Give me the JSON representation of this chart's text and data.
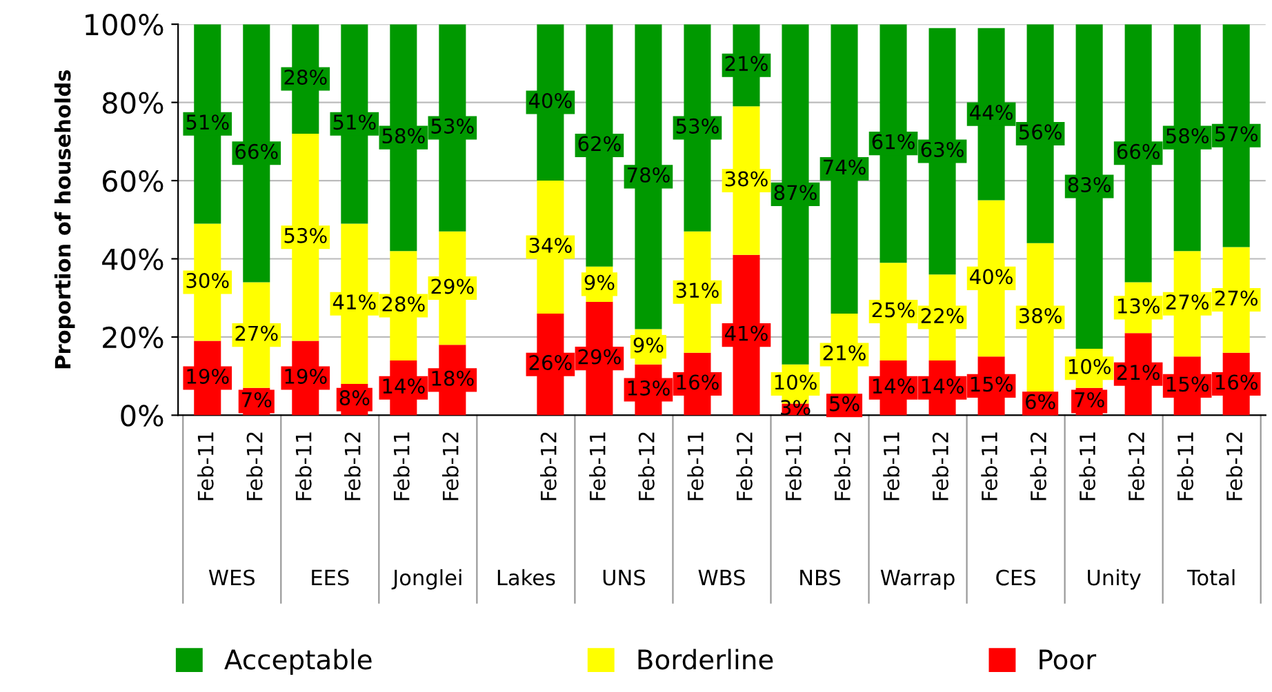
{
  "chart_data": {
    "type": "bar",
    "stacked": true,
    "ylabel": "Proportion of households",
    "categories": [
      "Feb-11",
      "Feb-12",
      "Feb-11",
      "Feb-12",
      "Feb-11",
      "Feb-12",
      null,
      "Feb-12",
      "Feb-11",
      "Feb-12",
      "Feb-11",
      "Feb-12",
      "Feb-11",
      "Feb-12",
      "Feb-11",
      "Feb-12",
      "Feb-11",
      "Feb-12",
      "Feb-11",
      "Feb-12",
      "Feb-11",
      "Feb-12"
    ],
    "annotations": [
      "WES",
      "EES",
      "Jonglei",
      "Lakes",
      "UNS",
      "WBS",
      "NBS",
      "Warrap",
      "CES",
      "Unity",
      "Total"
    ],
    "series": [
      {
        "name": "Poor",
        "color": "#ff0000",
        "values": [
          19,
          7,
          19,
          8,
          14,
          18,
          null,
          26,
          29,
          13,
          16,
          41,
          3,
          5,
          14,
          14,
          15,
          6,
          7,
          21,
          15,
          16
        ],
        "value_labels": [
          "19%",
          "7%",
          "19%",
          "8%",
          "14%",
          "18%",
          null,
          "26%",
          "29%",
          "13%",
          "16%",
          "41%",
          "3%",
          "5%",
          "14%",
          "14%",
          "15%",
          "6%",
          "7%",
          "21%",
          "15%",
          "16%"
        ]
      },
      {
        "name": "Borderline",
        "color": "#ffff00",
        "values": [
          30,
          27,
          53,
          41,
          28,
          29,
          null,
          34,
          9,
          9,
          31,
          38,
          10,
          21,
          25,
          22,
          40,
          38,
          10,
          13,
          27,
          27
        ],
        "value_labels": [
          "30%",
          "27%",
          "53%",
          "41%",
          "28%",
          "29%",
          null,
          "34%",
          "9%",
          "9%",
          "31%",
          "38%",
          "10%",
          "21%",
          "25%",
          "22%",
          "40%",
          "38%",
          "10%",
          "13%",
          "27%",
          "27%"
        ]
      },
      {
        "name": "Acceptable",
        "color": "#009900",
        "values": [
          51,
          66,
          28,
          51,
          58,
          53,
          null,
          40,
          62,
          78,
          53,
          21,
          87,
          74,
          61,
          63,
          44,
          56,
          83,
          66,
          58,
          57
        ],
        "value_labels": [
          "51%",
          "66%",
          "28%",
          "51%",
          "58%",
          "53%",
          null,
          "40%",
          "62%",
          "78%",
          "53%",
          "21%",
          "87%",
          "74%",
          "61%",
          "63%",
          "44%",
          "56%",
          "83%",
          "66%",
          "58%",
          "57%"
        ]
      }
    ],
    "ylim": [
      0,
      100
    ],
    "yticks": [
      {
        "value": 0,
        "label": "0%"
      },
      {
        "value": 20,
        "label": "20%"
      },
      {
        "value": 40,
        "label": "40%"
      },
      {
        "value": 60,
        "label": "60%"
      },
      {
        "value": 80,
        "label": "80%"
      },
      {
        "value": 100,
        "label": "100%"
      }
    ],
    "grid": "y",
    "legend": "bottom"
  }
}
